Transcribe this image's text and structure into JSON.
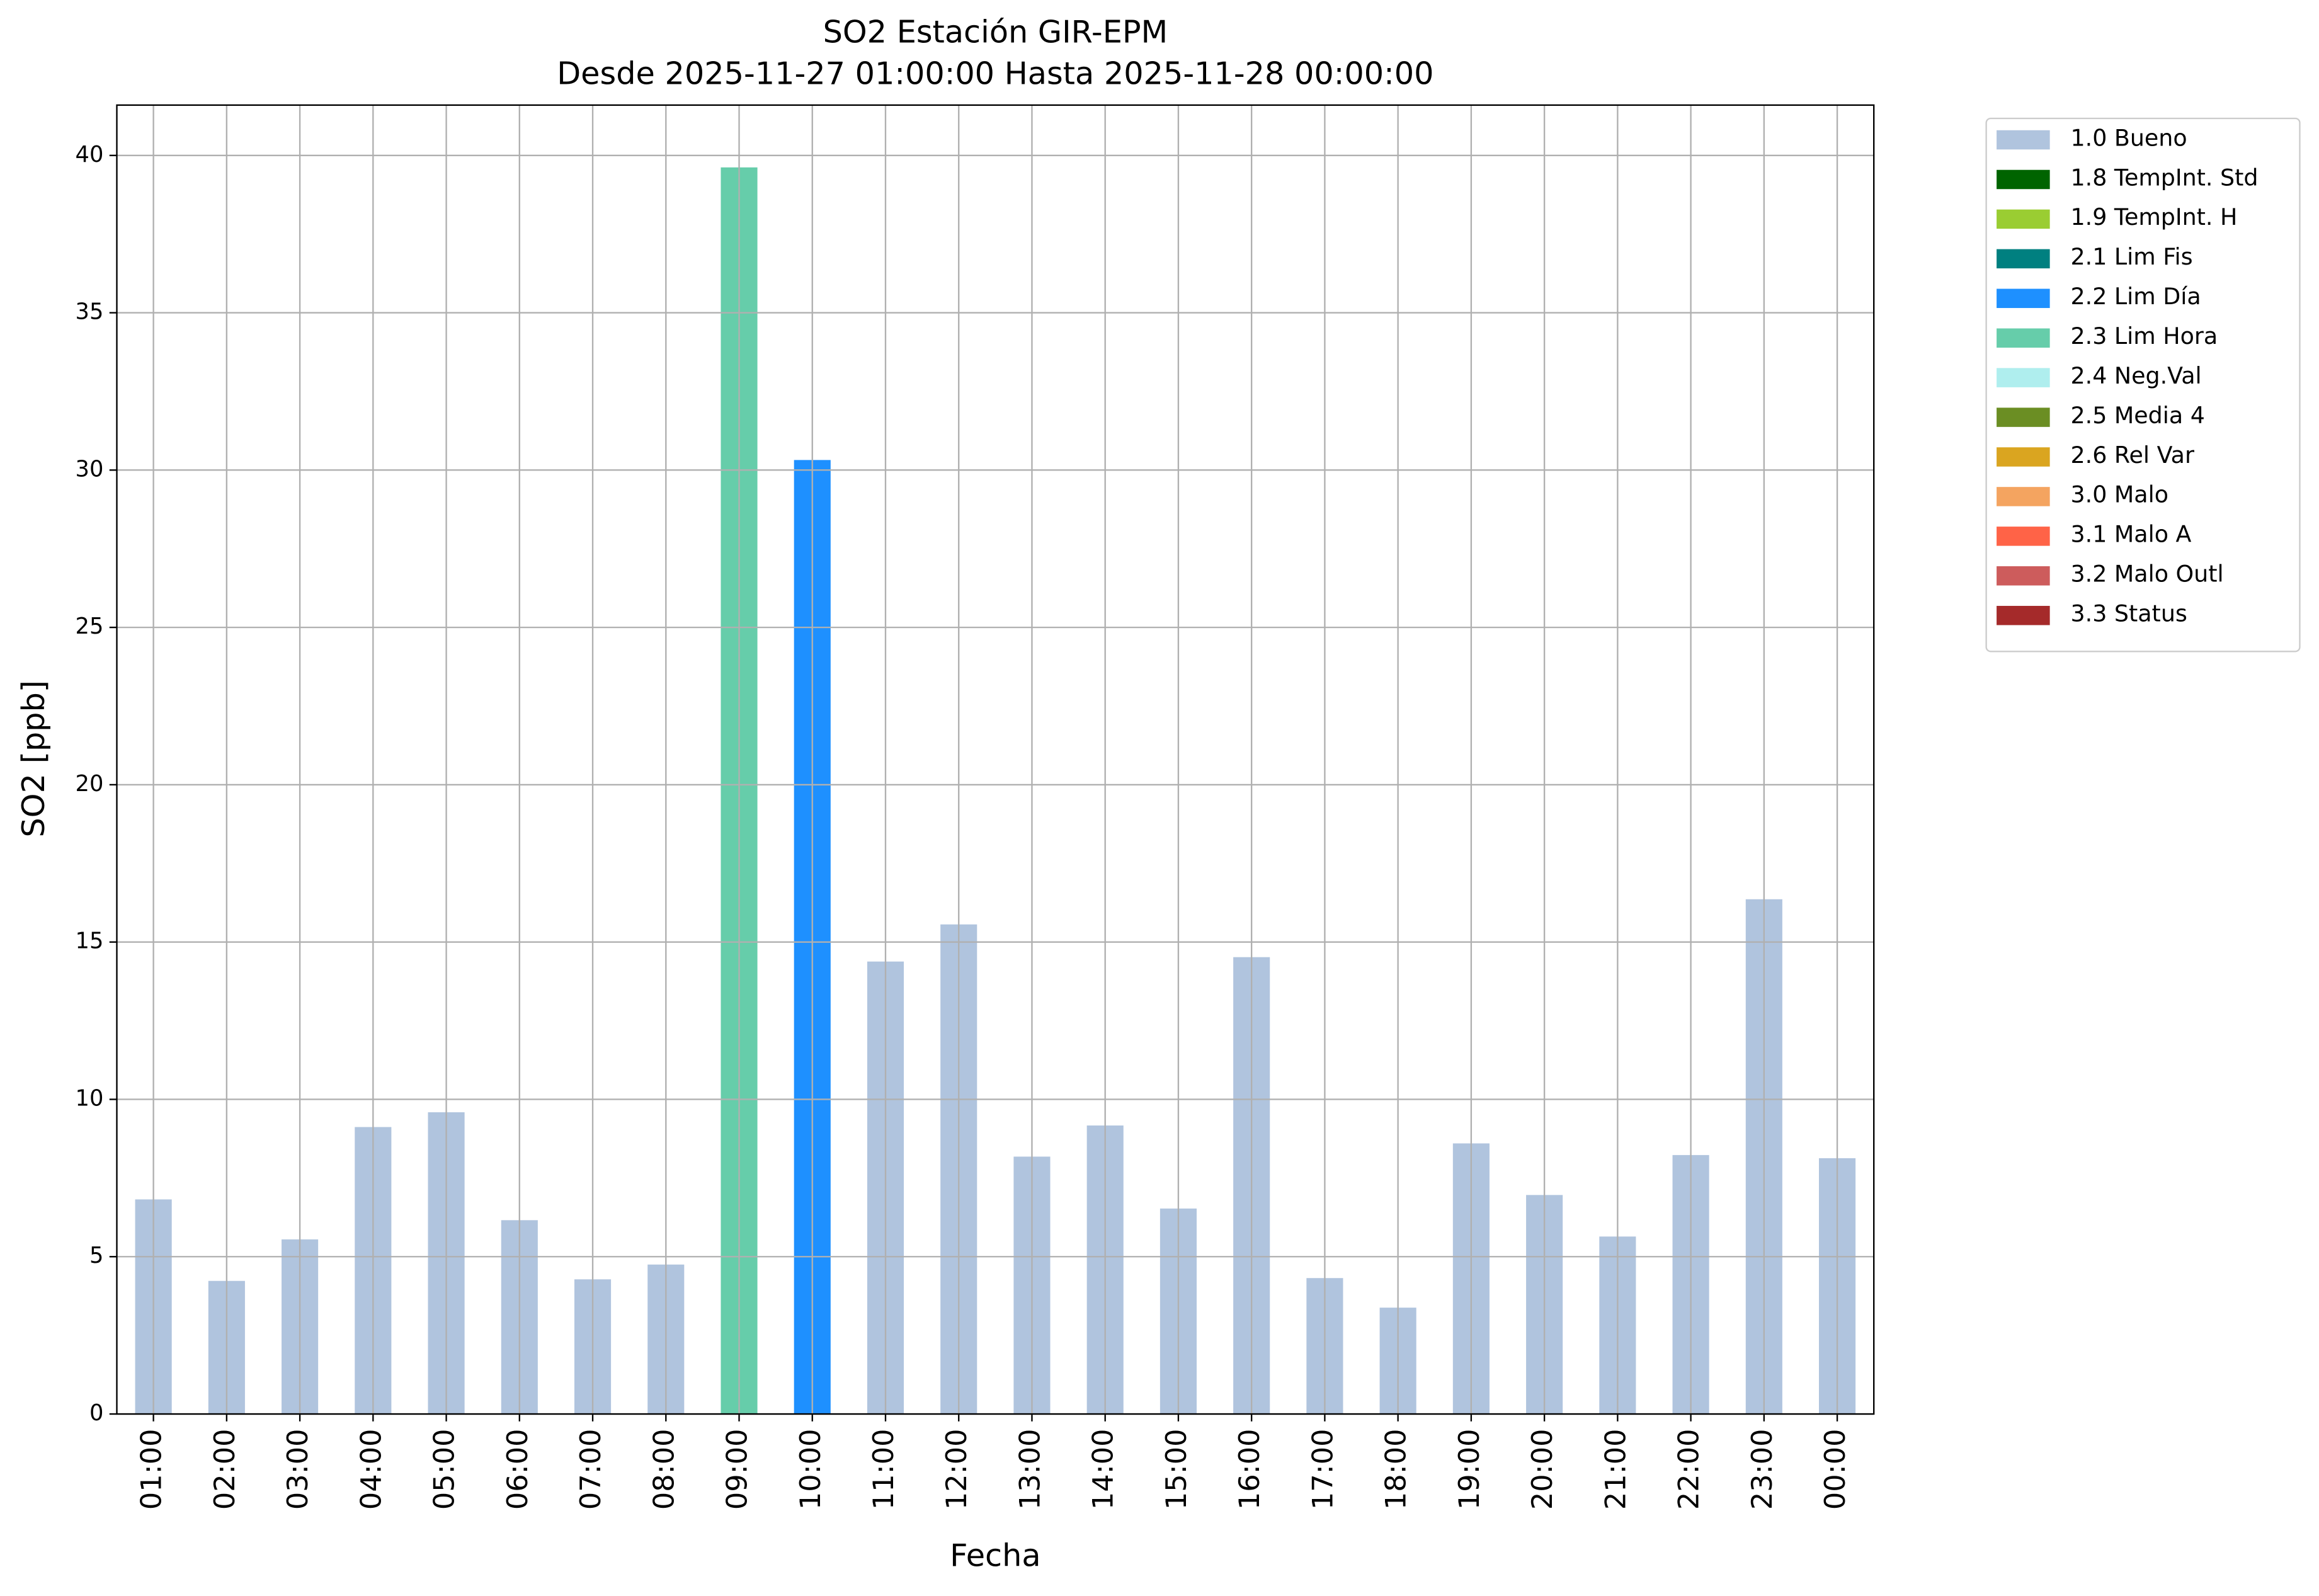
{
  "chart_data": {
    "type": "bar",
    "stacked": true,
    "title": "SO2 Estación GIR-EPM",
    "subtitle": "Desde 2025-11-27 01:00:00 Hasta 2025-11-28 00:00:00",
    "x_label": "Fecha",
    "y_label": "SO2 [ppb]",
    "categories": [
      "01:00",
      "02:00",
      "03:00",
      "04:00",
      "05:00",
      "06:00",
      "07:00",
      "08:00",
      "09:00",
      "10:00",
      "11:00",
      "12:00",
      "13:00",
      "14:00",
      "15:00",
      "16:00",
      "17:00",
      "18:00",
      "19:00",
      "20:00",
      "21:00",
      "22:00",
      "23:00",
      "00:00"
    ],
    "ylim": [
      0,
      41.6
    ],
    "yticks": [
      0,
      5,
      10,
      15,
      20,
      25,
      30,
      35,
      40
    ],
    "grid": true,
    "series": [
      {
        "name": "1.0 Bueno",
        "color": "#b0c4de",
        "values": [
          6.82,
          4.23,
          5.55,
          9.12,
          9.59,
          6.16,
          4.28,
          4.75,
          null,
          null,
          14.38,
          15.56,
          8.18,
          9.17,
          6.53,
          14.52,
          4.32,
          3.38,
          8.6,
          6.96,
          5.64,
          8.23,
          16.36,
          8.13
        ]
      },
      {
        "name": "1.8 TempInt. Std",
        "color": "#006400",
        "values": [
          null,
          null,
          null,
          null,
          null,
          null,
          null,
          null,
          null,
          null,
          null,
          null,
          null,
          null,
          null,
          null,
          null,
          null,
          null,
          null,
          null,
          null,
          null,
          null
        ]
      },
      {
        "name": "1.9 TempInt. H",
        "color": "#9acd32",
        "values": [
          null,
          null,
          null,
          null,
          null,
          null,
          null,
          null,
          null,
          null,
          null,
          null,
          null,
          null,
          null,
          null,
          null,
          null,
          null,
          null,
          null,
          null,
          null,
          null
        ]
      },
      {
        "name": "2.1 Lim Fis",
        "color": "#008080",
        "values": [
          null,
          null,
          null,
          null,
          null,
          null,
          null,
          null,
          null,
          null,
          null,
          null,
          null,
          null,
          null,
          null,
          null,
          null,
          null,
          null,
          null,
          null,
          null,
          null
        ]
      },
      {
        "name": "2.2 Lim Día",
        "color": "#1e90ff",
        "values": [
          null,
          null,
          null,
          null,
          null,
          null,
          null,
          null,
          null,
          30.32,
          null,
          null,
          null,
          null,
          null,
          null,
          null,
          null,
          null,
          null,
          null,
          null,
          null,
          null
        ]
      },
      {
        "name": "2.3 Lim Hora",
        "color": "#66cdaa",
        "values": [
          null,
          null,
          null,
          null,
          null,
          null,
          null,
          null,
          39.62,
          null,
          null,
          null,
          null,
          null,
          null,
          null,
          null,
          null,
          null,
          null,
          null,
          null,
          null,
          null
        ]
      },
      {
        "name": "2.4 Neg.Val",
        "color": "#afeeee",
        "values": [
          null,
          null,
          null,
          null,
          null,
          null,
          null,
          null,
          null,
          null,
          null,
          null,
          null,
          null,
          null,
          null,
          null,
          null,
          null,
          null,
          null,
          null,
          null,
          null
        ]
      },
      {
        "name": "2.5 Media 4",
        "color": "#6b8e23",
        "values": [
          null,
          null,
          null,
          null,
          null,
          null,
          null,
          null,
          null,
          null,
          null,
          null,
          null,
          null,
          null,
          null,
          null,
          null,
          null,
          null,
          null,
          null,
          null,
          null
        ]
      },
      {
        "name": "2.6 Rel Var",
        "color": "#daa520",
        "values": [
          null,
          null,
          null,
          null,
          null,
          null,
          null,
          null,
          null,
          null,
          null,
          null,
          null,
          null,
          null,
          null,
          null,
          null,
          null,
          null,
          null,
          null,
          null,
          null
        ]
      },
      {
        "name": "3.0 Malo",
        "color": "#f4a460",
        "values": [
          null,
          null,
          null,
          null,
          null,
          null,
          null,
          null,
          null,
          null,
          null,
          null,
          null,
          null,
          null,
          null,
          null,
          null,
          null,
          null,
          null,
          null,
          null,
          null
        ]
      },
      {
        "name": "3.1 Malo A",
        "color": "#ff6347",
        "values": [
          null,
          null,
          null,
          null,
          null,
          null,
          null,
          null,
          null,
          null,
          null,
          null,
          null,
          null,
          null,
          null,
          null,
          null,
          null,
          null,
          null,
          null,
          null,
          null
        ]
      },
      {
        "name": "3.2 Malo Outl",
        "color": "#cd5c5c",
        "values": [
          null,
          null,
          null,
          null,
          null,
          null,
          null,
          null,
          null,
          null,
          null,
          null,
          null,
          null,
          null,
          null,
          null,
          null,
          null,
          null,
          null,
          null,
          null,
          null
        ]
      },
      {
        "name": "3.3 Status",
        "color": "#a52a2a",
        "values": [
          null,
          null,
          null,
          null,
          null,
          null,
          null,
          null,
          null,
          null,
          null,
          null,
          null,
          null,
          null,
          null,
          null,
          null,
          null,
          null,
          null,
          null,
          null,
          null
        ]
      }
    ]
  }
}
